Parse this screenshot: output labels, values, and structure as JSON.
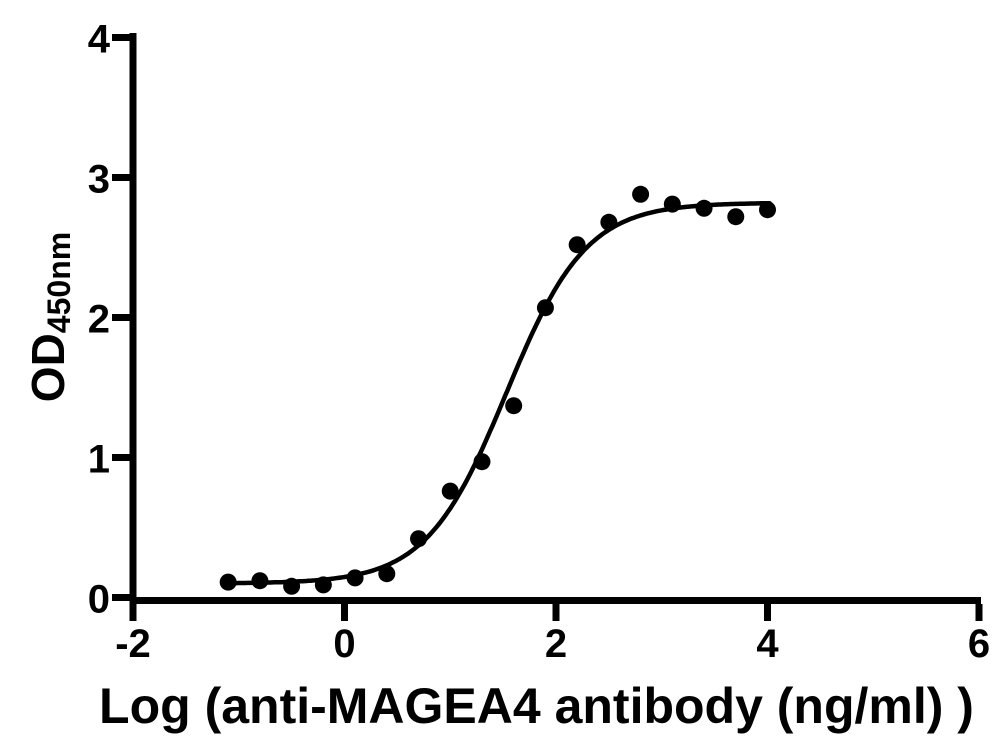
{
  "chart_data": {
    "type": "scatter",
    "title": "",
    "xlabel": "Log (anti-MAGEA4 antibody (ng/ml) )",
    "ylabel_main": "OD",
    "ylabel_sub": "450nm",
    "xlim": [
      -2,
      6
    ],
    "ylim": [
      0,
      4
    ],
    "xticks": [
      -2,
      0,
      2,
      4,
      6
    ],
    "yticks": [
      0,
      1,
      2,
      3,
      4
    ],
    "grid": false,
    "legend": "none",
    "background_color": "#ffffff",
    "axis_color": "#000000",
    "marker_color": "#000000",
    "curve_color": "#000000",
    "x": [
      -1.1,
      -0.8,
      -0.5,
      -0.2,
      0.1,
      0.4,
      0.7,
      1.0,
      1.3,
      1.6,
      1.9,
      2.2,
      2.5,
      2.8,
      3.1,
      3.4,
      3.7,
      4.0
    ],
    "y": [
      0.11,
      0.12,
      0.08,
      0.09,
      0.14,
      0.17,
      0.42,
      0.76,
      0.97,
      1.37,
      2.07,
      2.52,
      2.68,
      2.88,
      2.81,
      2.78,
      2.72,
      2.77
    ],
    "fit": {
      "model": "4PL logistic",
      "bottom": 0.1,
      "top": 2.82,
      "logEC50": 1.53,
      "hill": 1.15,
      "x_start": -1.12,
      "x_end": 4.02
    }
  }
}
